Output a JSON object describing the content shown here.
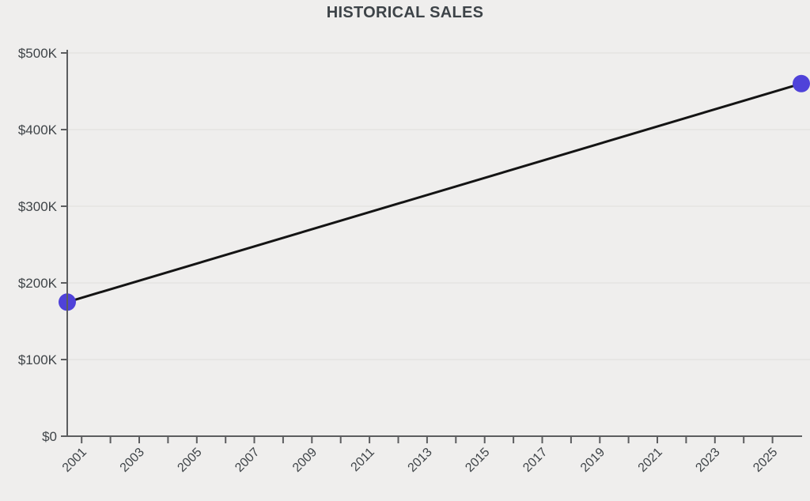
{
  "chart_data": {
    "type": "line",
    "title": "HISTORICAL SALES",
    "xlabel": "",
    "ylabel": "",
    "series": [
      {
        "name": "historical-sales",
        "points": [
          {
            "x": 2000.5,
            "y": 175000
          },
          {
            "x": 2026,
            "y": 460000
          }
        ]
      }
    ],
    "xlim": [
      2000.5,
      2026
    ],
    "ylim": [
      0,
      500000
    ],
    "x_ticks": [
      2001,
      2002,
      2003,
      2004,
      2005,
      2006,
      2007,
      2008,
      2009,
      2010,
      2011,
      2012,
      2013,
      2014,
      2015,
      2016,
      2017,
      2018,
      2019,
      2020,
      2021,
      2022,
      2023,
      2024,
      2025
    ],
    "x_tick_labels": [
      {
        "x": 2001,
        "label": "2001"
      },
      {
        "x": 2003,
        "label": "2003"
      },
      {
        "x": 2005,
        "label": "2005"
      },
      {
        "x": 2007,
        "label": "2007"
      },
      {
        "x": 2009,
        "label": "2009"
      },
      {
        "x": 2011,
        "label": "2011"
      },
      {
        "x": 2013,
        "label": "2013"
      },
      {
        "x": 2015,
        "label": "2015"
      },
      {
        "x": 2017,
        "label": "2017"
      },
      {
        "x": 2019,
        "label": "2019"
      },
      {
        "x": 2021,
        "label": "2021"
      },
      {
        "x": 2023,
        "label": "2023"
      },
      {
        "x": 2025,
        "label": "2025"
      }
    ],
    "y_ticks": [
      {
        "value": 0,
        "label": "$0"
      },
      {
        "value": 100000,
        "label": "$100K"
      },
      {
        "value": 200000,
        "label": "$200K"
      },
      {
        "value": 300000,
        "label": "$300K"
      },
      {
        "value": 400000,
        "label": "$400K"
      },
      {
        "value": 500000,
        "label": "$500K"
      }
    ],
    "grid": "horizontal-only",
    "legend_position": "none",
    "point_radius": 11,
    "line_width": 3,
    "colors": {
      "background": "#efeeed",
      "title_text": "#3d4348",
      "tick_text": "#3f4448",
      "axis": "#5c5d5f",
      "gridline": "#e7e6e4",
      "line": "#141414",
      "point": "#4f42d9"
    }
  }
}
